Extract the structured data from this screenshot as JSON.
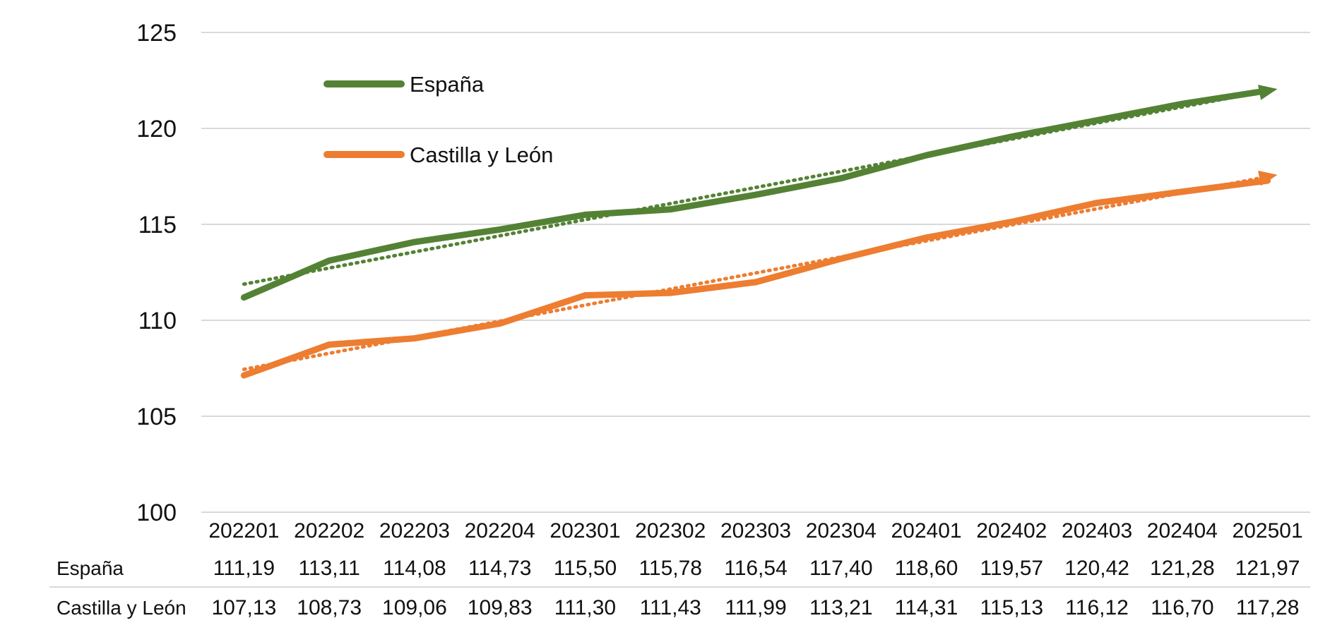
{
  "chart_data": {
    "type": "line",
    "title": "",
    "xlabel": "",
    "ylabel": "",
    "ylim": [
      100,
      125
    ],
    "yticks": [
      "100",
      "105",
      "110",
      "115",
      "120",
      "125"
    ],
    "categories": [
      "202201",
      "202202",
      "202203",
      "202204",
      "202301",
      "202302",
      "202303",
      "202304",
      "202401",
      "202402",
      "202403",
      "202404",
      "202501"
    ],
    "grid": "horizontal",
    "legend_position": "top-left",
    "trendlines": "linear dotted, one per series",
    "series": [
      {
        "name": "España",
        "color": "#548235",
        "values": [
          111.19,
          113.11,
          114.08,
          114.73,
          115.5,
          115.78,
          116.54,
          117.4,
          118.6,
          119.57,
          120.42,
          121.28,
          121.97
        ],
        "labels": [
          "111,19",
          "113,11",
          "114,08",
          "114,73",
          "115,50",
          "115,78",
          "116,54",
          "117,40",
          "118,60",
          "119,57",
          "120,42",
          "121,28",
          "121,97"
        ]
      },
      {
        "name": "Castilla y León",
        "color": "#ED7D31",
        "values": [
          107.13,
          108.73,
          109.06,
          109.83,
          111.3,
          111.43,
          111.99,
          113.21,
          114.31,
          115.13,
          116.12,
          116.7,
          117.28
        ],
        "labels": [
          "107,13",
          "108,73",
          "109,06",
          "109,83",
          "111,30",
          "111,43",
          "111,99",
          "113,21",
          "114,31",
          "115,13",
          "116,12",
          "116,70",
          "117,28"
        ]
      }
    ]
  }
}
